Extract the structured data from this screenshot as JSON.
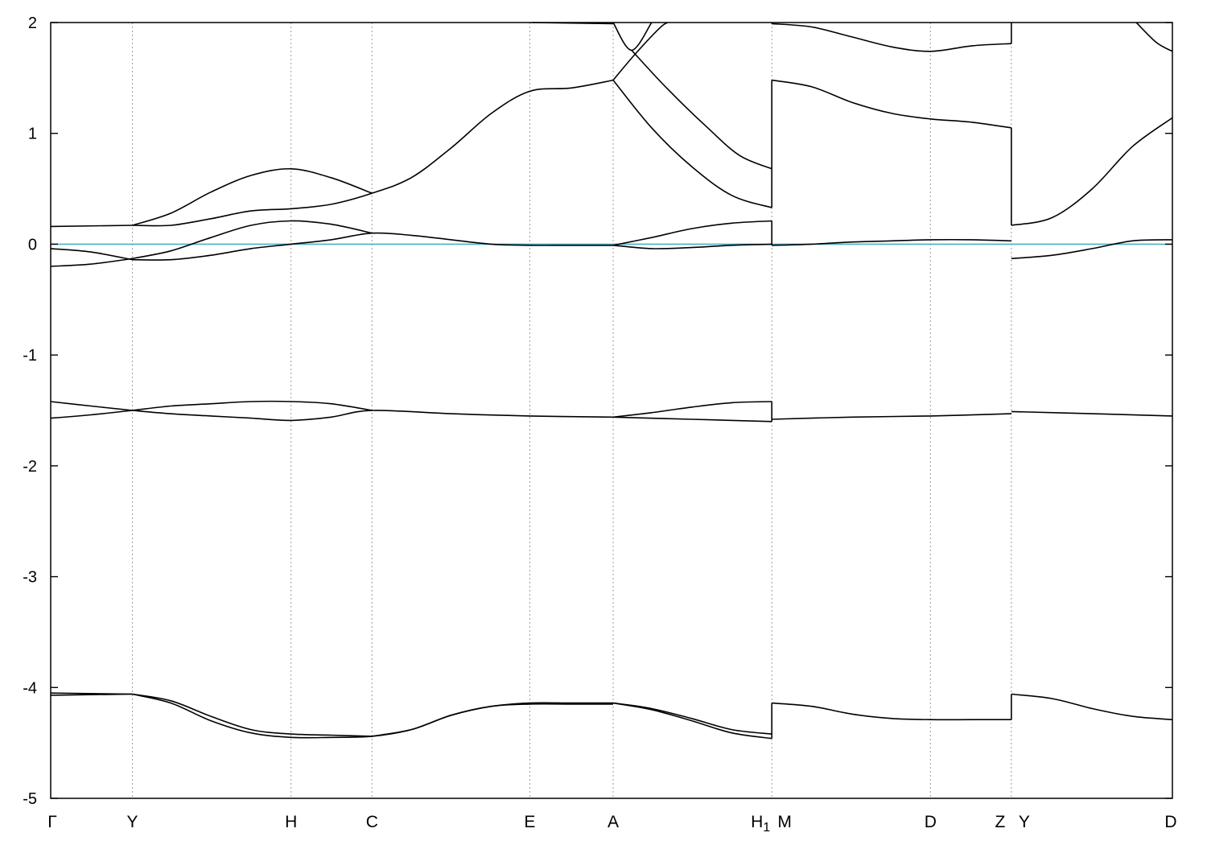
{
  "chart_data": {
    "type": "line",
    "title": "",
    "xlabel": "",
    "ylabel": "",
    "ylim": [
      -5,
      2
    ],
    "xlim": [
      0,
      14
    ],
    "y_ticks": [
      2,
      1,
      0,
      -1,
      -2,
      -3,
      -4,
      -5
    ],
    "grid": "vertical dotted lines at high-symmetry points",
    "fermi_level": 0,
    "fermi_color": "#4bafc8",
    "band_color": "#000000",
    "kpoints": [
      {
        "label": "Γ",
        "sub": "",
        "x": 0
      },
      {
        "label": "Y",
        "sub": "",
        "x": 1.02
      },
      {
        "label": "H",
        "sub": "",
        "x": 3.0
      },
      {
        "label": "C",
        "sub": "",
        "x": 4.01
      },
      {
        "label": "E",
        "sub": "",
        "x": 5.98
      },
      {
        "label": "A",
        "sub": "",
        "x": 7.02
      },
      {
        "label": "H",
        "sub": "1",
        "x": 9.0
      },
      {
        "label": "M",
        "sub": "",
        "x": 9.0
      },
      {
        "label": "D",
        "sub": "",
        "x": 10.98
      },
      {
        "label": "Z",
        "sub": "",
        "x": 11.99
      },
      {
        "label": "Y",
        "sub": "",
        "x": 11.99
      },
      {
        "label": "D",
        "sub": "",
        "x": 14.0
      }
    ],
    "bands": [
      {
        "segment": "Γ-Y",
        "points": [
          [
            0,
            0.16
          ],
          [
            1.02,
            0.17
          ]
        ]
      },
      {
        "segment": "Γ-Y",
        "points": [
          [
            0,
            -0.04
          ],
          [
            0.5,
            -0.07
          ],
          [
            1.02,
            -0.14
          ]
        ]
      },
      {
        "segment": "Γ-Y",
        "points": [
          [
            0,
            -0.2
          ],
          [
            0.5,
            -0.18
          ],
          [
            1.02,
            -0.13
          ]
        ]
      },
      {
        "segment": "Γ-Y",
        "points": [
          [
            0,
            -1.42
          ],
          [
            0.5,
            -1.46
          ],
          [
            1.02,
            -1.5
          ]
        ]
      },
      {
        "segment": "Γ-Y",
        "points": [
          [
            0,
            -1.57
          ],
          [
            0.5,
            -1.54
          ],
          [
            1.02,
            -1.5
          ]
        ]
      },
      {
        "segment": "Γ-Y",
        "points": [
          [
            0,
            -4.05
          ],
          [
            1.02,
            -4.06
          ]
        ]
      },
      {
        "segment": "Γ-Y",
        "points": [
          [
            0,
            -4.07
          ],
          [
            1.02,
            -4.06
          ]
        ]
      },
      {
        "segment": "Y-H",
        "points": [
          [
            1.02,
            0.17
          ],
          [
            1.5,
            0.28
          ],
          [
            2.0,
            0.47
          ],
          [
            2.5,
            0.62
          ],
          [
            3.0,
            0.68
          ],
          [
            3.5,
            0.6
          ],
          [
            4.01,
            0.46
          ]
        ]
      },
      {
        "segment": "Y-H",
        "points": [
          [
            1.02,
            0.17
          ],
          [
            1.5,
            0.17
          ],
          [
            2.0,
            0.23
          ],
          [
            2.5,
            0.3
          ],
          [
            3.0,
            0.32
          ],
          [
            3.5,
            0.36
          ],
          [
            4.01,
            0.46
          ],
          [
            4.5,
            0.6
          ],
          [
            5.0,
            0.87
          ],
          [
            5.5,
            1.18
          ],
          [
            5.98,
            1.38
          ],
          [
            6.5,
            1.41
          ],
          [
            7.02,
            1.48
          ]
        ]
      },
      {
        "segment": "Y-H",
        "points": [
          [
            1.02,
            -0.13
          ],
          [
            1.5,
            -0.06
          ],
          [
            2.0,
            0.06
          ],
          [
            2.5,
            0.17
          ],
          [
            3.0,
            0.21
          ],
          [
            3.5,
            0.18
          ],
          [
            4.01,
            0.1
          ]
        ]
      },
      {
        "segment": "Y-H",
        "points": [
          [
            1.02,
            -0.14
          ],
          [
            1.5,
            -0.14
          ],
          [
            2.0,
            -0.1
          ],
          [
            2.5,
            -0.04
          ],
          [
            3.0,
            0.0
          ],
          [
            3.5,
            0.04
          ],
          [
            4.01,
            0.1
          ],
          [
            4.5,
            0.08
          ],
          [
            5.0,
            0.04
          ],
          [
            5.5,
            0.0
          ],
          [
            5.98,
            -0.01
          ],
          [
            6.5,
            -0.01
          ],
          [
            7.02,
            -0.01
          ]
        ]
      },
      {
        "segment": "Y-H",
        "points": [
          [
            1.02,
            -1.5
          ],
          [
            1.5,
            -1.46
          ],
          [
            2.0,
            -1.44
          ],
          [
            2.5,
            -1.42
          ],
          [
            3.0,
            -1.42
          ],
          [
            3.5,
            -1.44
          ],
          [
            4.01,
            -1.5
          ]
        ]
      },
      {
        "segment": "Y-H",
        "points": [
          [
            1.02,
            -1.5
          ],
          [
            1.5,
            -1.53
          ],
          [
            2.0,
            -1.55
          ],
          [
            2.5,
            -1.57
          ],
          [
            3.0,
            -1.59
          ],
          [
            3.5,
            -1.56
          ],
          [
            4.01,
            -1.5
          ],
          [
            5.0,
            -1.53
          ],
          [
            5.98,
            -1.55
          ],
          [
            7.02,
            -1.56
          ]
        ]
      },
      {
        "segment": "Y-H",
        "points": [
          [
            1.02,
            -4.06
          ],
          [
            1.5,
            -4.12
          ],
          [
            2.0,
            -4.26
          ],
          [
            2.5,
            -4.38
          ],
          [
            3.0,
            -4.42
          ],
          [
            3.5,
            -4.43
          ],
          [
            4.01,
            -4.44
          ]
        ]
      },
      {
        "segment": "Y-H",
        "points": [
          [
            1.02,
            -4.06
          ],
          [
            1.5,
            -4.14
          ],
          [
            2.0,
            -4.3
          ],
          [
            2.5,
            -4.41
          ],
          [
            3.0,
            -4.45
          ],
          [
            3.5,
            -4.45
          ],
          [
            4.01,
            -4.44
          ],
          [
            4.5,
            -4.38
          ],
          [
            5.0,
            -4.25
          ],
          [
            5.5,
            -4.17
          ],
          [
            5.98,
            -4.14
          ],
          [
            6.5,
            -4.14
          ],
          [
            7.02,
            -4.14
          ]
        ]
      },
      {
        "segment": "Y-H",
        "points": [
          [
            4.01,
            -4.44
          ],
          [
            4.5,
            -4.38
          ],
          [
            5.0,
            -4.25
          ],
          [
            5.5,
            -4.17
          ],
          [
            5.98,
            -4.15
          ],
          [
            6.5,
            -4.15
          ],
          [
            7.02,
            -4.15
          ]
        ]
      },
      {
        "segment": "A-H1",
        "points": [
          [
            7.02,
            1.48
          ],
          [
            7.3,
            1.72
          ],
          [
            7.6,
            1.95
          ],
          [
            7.7,
            2.0
          ]
        ]
      },
      {
        "segment": "A-H1",
        "points": [
          [
            7.02,
            2.0
          ],
          [
            7.25,
            1.75
          ],
          [
            7.5,
            2.0
          ]
        ]
      },
      {
        "segment": "A-H1",
        "points": [
          [
            6.0,
            2.0
          ],
          [
            7.02,
            1.99
          ]
        ]
      },
      {
        "segment": "A-H1",
        "points": [
          [
            7.25,
            1.75
          ],
          [
            7.7,
            1.4
          ],
          [
            8.2,
            1.05
          ],
          [
            8.6,
            0.8
          ],
          [
            9.0,
            0.68
          ]
        ]
      },
      {
        "segment": "A-H1",
        "points": [
          [
            7.02,
            1.48
          ],
          [
            7.5,
            1.05
          ],
          [
            8.0,
            0.7
          ],
          [
            8.5,
            0.44
          ],
          [
            9.0,
            0.33
          ]
        ]
      },
      {
        "segment": "A-H1",
        "points": [
          [
            7.02,
            -0.01
          ],
          [
            7.5,
            -0.04
          ],
          [
            8.0,
            -0.03
          ],
          [
            8.5,
            -0.01
          ],
          [
            9.0,
            0.0
          ]
        ]
      },
      {
        "segment": "A-H1",
        "points": [
          [
            7.02,
            -0.01
          ],
          [
            7.5,
            0.06
          ],
          [
            8.0,
            0.14
          ],
          [
            8.5,
            0.19
          ],
          [
            9.0,
            0.21
          ]
        ]
      },
      {
        "segment": "A-H1",
        "points": [
          [
            7.02,
            -1.56
          ],
          [
            7.5,
            -1.52
          ],
          [
            8.0,
            -1.47
          ],
          [
            8.5,
            -1.43
          ],
          [
            9.0,
            -1.42
          ]
        ]
      },
      {
        "segment": "A-H1",
        "points": [
          [
            7.02,
            -1.56
          ],
          [
            8.0,
            -1.58
          ],
          [
            9.0,
            -1.6
          ]
        ]
      },
      {
        "segment": "A-H1",
        "points": [
          [
            7.02,
            -4.14
          ],
          [
            7.5,
            -4.19
          ],
          [
            8.0,
            -4.28
          ],
          [
            8.5,
            -4.38
          ],
          [
            9.0,
            -4.42
          ]
        ]
      },
      {
        "segment": "A-H1",
        "points": [
          [
            7.02,
            -4.14
          ],
          [
            7.5,
            -4.2
          ],
          [
            8.0,
            -4.3
          ],
          [
            8.5,
            -4.41
          ],
          [
            9.0,
            -4.46
          ]
        ]
      },
      {
        "segment": "M-Z",
        "points": [
          [
            9.0,
            1.99
          ],
          [
            9.5,
            1.96
          ],
          [
            10.0,
            1.87
          ],
          [
            10.5,
            1.78
          ],
          [
            10.98,
            1.74
          ],
          [
            11.5,
            1.79
          ],
          [
            11.99,
            1.81
          ]
        ]
      },
      {
        "segment": "M-Z",
        "points": [
          [
            9.0,
            1.48
          ],
          [
            9.5,
            1.42
          ],
          [
            10.0,
            1.28
          ],
          [
            10.5,
            1.18
          ],
          [
            10.98,
            1.13
          ],
          [
            11.5,
            1.1
          ],
          [
            11.99,
            1.05
          ]
        ]
      },
      {
        "segment": "M-Z",
        "points": [
          [
            9.0,
            -0.01
          ],
          [
            9.5,
            0.0
          ],
          [
            10.0,
            0.02
          ],
          [
            10.5,
            0.03
          ],
          [
            10.98,
            0.04
          ],
          [
            11.5,
            0.04
          ],
          [
            11.99,
            0.03
          ]
        ]
      },
      {
        "segment": "M-Z",
        "points": [
          [
            9.0,
            -1.58
          ],
          [
            10.0,
            -1.56
          ],
          [
            10.98,
            -1.55
          ],
          [
            11.99,
            -1.53
          ]
        ]
      },
      {
        "segment": "M-Z",
        "points": [
          [
            9.0,
            -4.14
          ],
          [
            9.5,
            -4.17
          ],
          [
            10.0,
            -4.24
          ],
          [
            10.5,
            -4.28
          ],
          [
            10.98,
            -4.29
          ],
          [
            11.5,
            -4.29
          ],
          [
            11.99,
            -4.29
          ]
        ]
      },
      {
        "segment": "Y-D",
        "points": [
          [
            11.99,
            0.17
          ],
          [
            12.5,
            0.24
          ],
          [
            13.0,
            0.5
          ],
          [
            13.5,
            0.88
          ],
          [
            14.0,
            1.14
          ]
        ]
      },
      {
        "segment": "Y-D",
        "points": [
          [
            11.99,
            -0.13
          ],
          [
            12.5,
            -0.1
          ],
          [
            13.0,
            -0.04
          ],
          [
            13.5,
            0.03
          ],
          [
            14.0,
            0.04
          ]
        ]
      },
      {
        "segment": "Y-D",
        "points": [
          [
            11.99,
            -1.51
          ],
          [
            13.0,
            -1.53
          ],
          [
            14.0,
            -1.55
          ]
        ]
      },
      {
        "segment": "Y-D",
        "points": [
          [
            11.99,
            -4.06
          ],
          [
            12.5,
            -4.1
          ],
          [
            13.0,
            -4.19
          ],
          [
            13.5,
            -4.26
          ],
          [
            14.0,
            -4.29
          ]
        ]
      },
      {
        "segment": "Y-D",
        "points": [
          [
            13.55,
            2.0
          ],
          [
            13.8,
            1.82
          ],
          [
            14.0,
            1.74
          ]
        ]
      }
    ],
    "discontinuities": [
      {
        "x": 9.0,
        "from": 0.33,
        "to": 1.48
      },
      {
        "x": 9.0,
        "from": 1.99,
        "to": 2.0
      },
      {
        "x": 9.0,
        "from": 0.21,
        "to": -0.01
      },
      {
        "x": 9.0,
        "from": -1.42,
        "to": -1.6
      },
      {
        "x": 9.0,
        "from": -4.46,
        "to": -4.14
      },
      {
        "x": 11.99,
        "from": 1.05,
        "to": 0.17
      },
      {
        "x": 11.99,
        "from": 1.81,
        "to": 2.0
      },
      {
        "x": 11.99,
        "from": -4.29,
        "to": -4.06
      }
    ]
  }
}
